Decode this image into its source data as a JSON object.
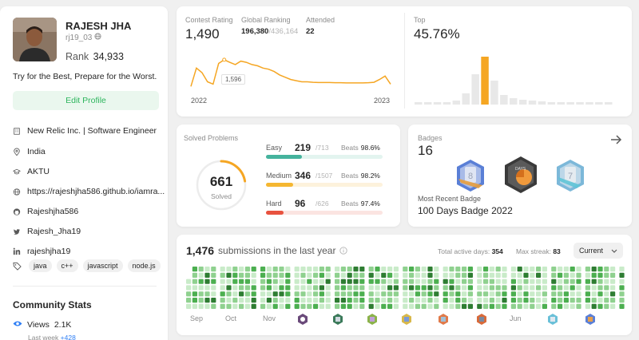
{
  "profile": {
    "name": "RAJESH JHA",
    "username": "rj19_03",
    "rank_label": "Rank",
    "rank_value": "34,933",
    "bio": "Try for the Best, Prepare for the Worst.",
    "edit_label": "Edit Profile",
    "company": "New Relic Inc. | Software Engineer",
    "location": "India",
    "school": "AKTU",
    "website": "https://rajeshjha586.github.io/iamra...",
    "github": "Rajeshjha586",
    "twitter": "Rajesh_Jha19",
    "linkedin": "rajeshjha19",
    "skills": [
      "java",
      "c++",
      "javascript",
      "node.js"
    ]
  },
  "community": {
    "title": "Community Stats",
    "views_label": "Views",
    "views_value": "2.1K",
    "last_week_label": "Last week",
    "last_week_value": "+428"
  },
  "contest": {
    "rating_label": "Contest Rating",
    "rating_value": "1,490",
    "ranking_label": "Global Ranking",
    "ranking_value": "196,380",
    "ranking_total": "/436,164",
    "attended_label": "Attended",
    "attended_value": "22",
    "tooltip_value": "1,596",
    "x_start": "2022",
    "x_end": "2023",
    "top_label": "Top",
    "top_value": "45.76%",
    "rating_history": [
      1480,
      1560,
      1540,
      1500,
      1490,
      1580,
      1596,
      1585,
      1575,
      1590,
      1585,
      1575,
      1570,
      1560,
      1555,
      1545,
      1530,
      1520,
      1510,
      1505,
      1500,
      1500,
      1498,
      1497,
      1497,
      1497,
      1496,
      1496,
      1495,
      1495,
      1495,
      1495,
      1496,
      1498,
      1510,
      1525,
      1490
    ],
    "top_histogram": [
      2,
      2,
      2,
      3,
      5,
      14,
      38,
      60,
      30,
      12,
      8,
      6,
      5,
      4,
      3,
      3,
      2,
      2,
      2,
      2,
      2
    ],
    "top_highlight_index": 7,
    "colors": {
      "line": "#f5a623",
      "bar": "#e8e8e8",
      "highlight": "#f5a623"
    }
  },
  "solved": {
    "title": "Solved Problems",
    "total": "661",
    "total_label": "Solved",
    "beats_label": "Beats",
    "easy": {
      "label": "Easy",
      "count": "219",
      "total": "/713",
      "beats": "98.6%",
      "fraction": 0.307
    },
    "medium": {
      "label": "Medium",
      "count": "346",
      "total": "/1507",
      "beats": "98.2%",
      "fraction": 0.23
    },
    "hard": {
      "label": "Hard",
      "count": "96",
      "total": "/626",
      "beats": "97.4%",
      "fraction": 0.153
    },
    "colors": {
      "easy": "#45b39d",
      "medium": "#f5b731",
      "hard": "#e8523f",
      "ring": "#f5a623"
    }
  },
  "badges": {
    "title": "Badges",
    "count": "16",
    "recent_label": "Most Recent Badge",
    "recent_name": "100 Days Badge 2022",
    "badge_year_text": "DAYS",
    "icons": [
      "badge-8-icon",
      "badge-100-days-icon",
      "badge-7-icon"
    ]
  },
  "submissions": {
    "count": "1,476",
    "label": "submissions in the last year",
    "active_days_label": "Total active days:",
    "active_days_value": "354",
    "max_streak_label": "Max streak:",
    "max_streak_value": "83",
    "period_selected": "Current",
    "months": [
      "Sep",
      "Oct",
      "Nov",
      "Jun"
    ],
    "colors": [
      "#c9ebc9",
      "#8fd18f",
      "#4caf50",
      "#2e7d32"
    ]
  }
}
